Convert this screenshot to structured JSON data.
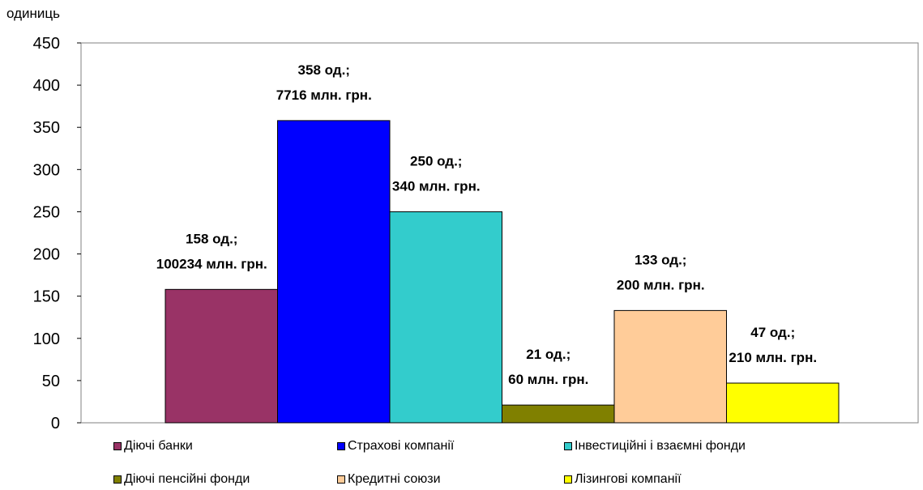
{
  "chart_data": {
    "type": "bar",
    "ylabel": "одиниць",
    "ylim": [
      0,
      450
    ],
    "yticks": [
      0,
      50,
      100,
      150,
      200,
      250,
      300,
      350,
      400,
      450
    ],
    "grid": false,
    "legend_position": "bottom",
    "series": [
      {
        "name": "Діючі банки",
        "value": 158,
        "label_line1": "158 од.;",
        "label_line2": "100234 млн. грн.",
        "color": "#993366"
      },
      {
        "name": "Страхові компанії",
        "value": 358,
        "label_line1": "358 од.;",
        "label_line2": "7716 млн. грн.",
        "color": "#0000FF"
      },
      {
        "name": "Інвестиційні і взаємні фонди",
        "value": 250,
        "label_line1": "250 од.;",
        "label_line2": "340 млн. грн.",
        "color": "#33CCCC"
      },
      {
        "name": "Діючі пенсійні фонди",
        "value": 21,
        "label_line1": "21 од.;",
        "label_line2": "60 млн. грн.",
        "color": "#808000"
      },
      {
        "name": "Кредитні союзи",
        "value": 133,
        "label_line1": "133 од.;",
        "label_line2": "200 млн. грн.",
        "color": "#FFCC99"
      },
      {
        "name": "Лізингові компанії",
        "value": 47,
        "label_line1": "47 од.;",
        "label_line2": "210 млн. грн.",
        "color": "#FFFF00"
      }
    ]
  }
}
